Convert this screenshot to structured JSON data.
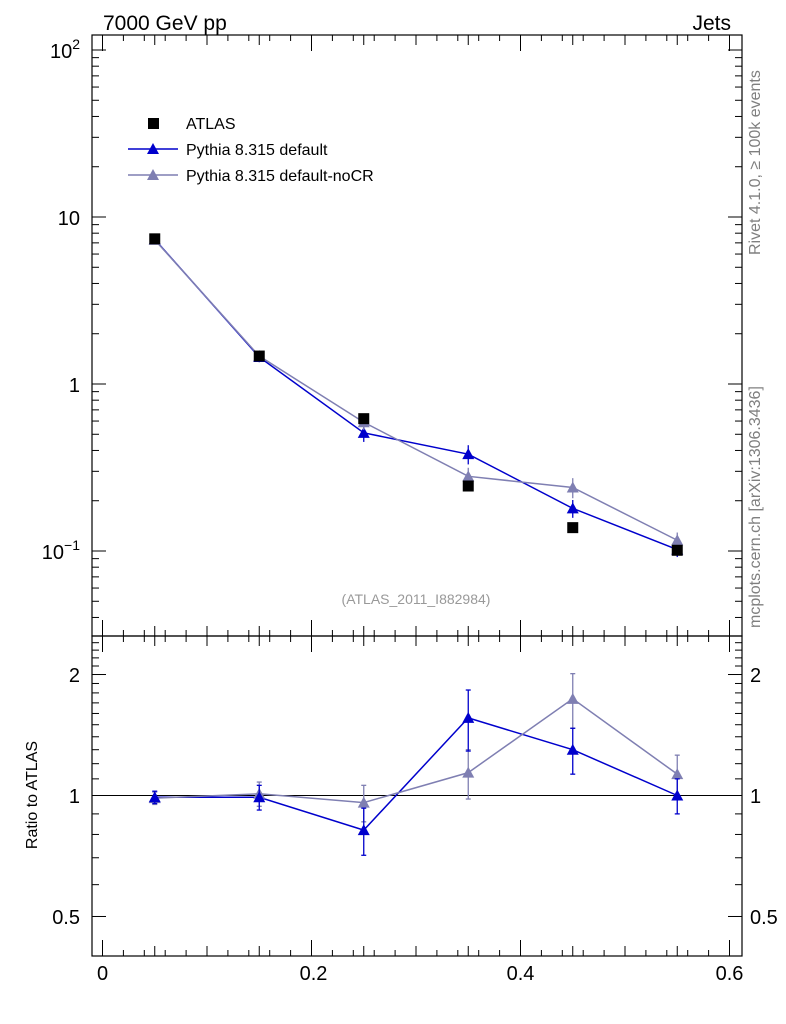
{
  "header": {
    "energy_label": "7000 GeV pp",
    "category_label": "Jets"
  },
  "side_labels": {
    "rivet": "Rivet 4.1.0, ≥ 100k events",
    "source": "mcplots.cern.ch [arXiv:1306.3436]"
  },
  "analysis_label": "(ATLAS_2011_I882984)",
  "ratio_ylabel": "Ratio to ATLAS",
  "legend": [
    {
      "name": "ATLAS",
      "color": "#000000",
      "marker": "square"
    },
    {
      "name": "Pythia 8.315 default",
      "color": "#0000cc",
      "marker": "triangle"
    },
    {
      "name": "Pythia 8.315 default-noCR",
      "color": "#7f7fb2",
      "marker": "triangle"
    }
  ],
  "chart_data": [
    {
      "type": "line",
      "panel": "main",
      "yscale": "log",
      "xlim": [
        -0.01,
        0.6
      ],
      "ylim": [
        0.035,
        130
      ],
      "xlabel": "",
      "ylabel": "",
      "ytick_labels": [
        "10^-1",
        "1",
        "10",
        "10^2"
      ],
      "x": [
        0.05,
        0.15,
        0.25,
        0.35,
        0.45,
        0.55
      ],
      "series": [
        {
          "name": "ATLAS",
          "values": [
            7.4,
            1.47,
            0.62,
            0.245,
            0.138,
            0.101
          ],
          "errors": [
            0,
            0,
            0,
            0,
            0,
            0
          ]
        },
        {
          "name": "Pythia 8.315 default",
          "values": [
            7.35,
            1.45,
            0.51,
            0.38,
            0.18,
            0.102
          ],
          "errors": [
            0.25,
            0.1,
            0.06,
            0.05,
            0.022,
            0.01
          ]
        },
        {
          "name": "Pythia 8.315 default-noCR",
          "values": [
            7.3,
            1.47,
            0.59,
            0.28,
            0.24,
            0.116
          ],
          "errors": [
            0.25,
            0.1,
            0.06,
            0.035,
            0.033,
            0.013
          ]
        }
      ]
    },
    {
      "type": "line",
      "panel": "ratio",
      "yscale": "log",
      "xlim": [
        -0.01,
        0.6
      ],
      "ylim": [
        0.4,
        2.45
      ],
      "xlabel": "",
      "ylabel": "Ratio to ATLAS",
      "xtick_labels": [
        "0",
        "0.2",
        "0.4",
        "0.6"
      ],
      "ytick_labels": [
        "0.5",
        "1",
        "2"
      ],
      "reference": 1,
      "x": [
        0.05,
        0.15,
        0.25,
        0.35,
        0.45,
        0.55
      ],
      "series": [
        {
          "name": "Pythia 8.315 default",
          "values": [
            0.99,
            0.99,
            0.82,
            1.56,
            1.3,
            1.0
          ],
          "errors": [
            0.035,
            0.07,
            0.11,
            0.27,
            0.17,
            0.1
          ]
        },
        {
          "name": "Pythia 8.315 default-noCR",
          "values": [
            0.985,
            1.01,
            0.96,
            1.14,
            1.74,
            1.13
          ],
          "errors": [
            0.035,
            0.07,
            0.1,
            0.16,
            0.27,
            0.13
          ]
        }
      ]
    }
  ]
}
